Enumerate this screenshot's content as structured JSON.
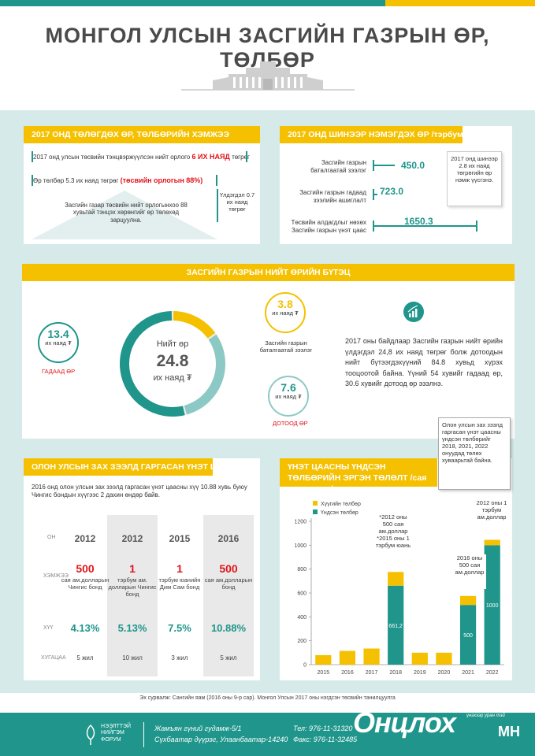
{
  "title": "МОНГОЛ УЛСЫН ЗАСГИЙН ГАЗРЫН ӨР, ТӨЛБӨР",
  "colors": {
    "teal": "#1f958b",
    "yellow": "#f5c000",
    "red": "#e0151b",
    "bg": "#d7eaea"
  },
  "payments_2017": {
    "header": "2017 ОНД ТӨЛӨГДӨХ ӨР, ТӨЛБӨРИЙН ХЭМЖЭЭ",
    "line1_pre": "2017 онд улсын төсвийн тэнцвэржүүлсэн нийт орлого",
    "line1_red": "6 ИХ НАЯД",
    "line1_post": "төгрөг",
    "line2_pre": "Өр төлбөр 5.3 их наяд төгрөг",
    "line2_red": "(төсвийн орлогын 88%)",
    "remainder": "Үлдэгдэл 0.7 их наяд төгрөг",
    "triangle_text": "Засгийн газар төсвийн нийт орлогынхоо 88 хувьтай тэнцэх хөрөнгийг өр төлөхөд зарцуулна."
  },
  "new_debt_2017": {
    "header": "2017 ОНД ШИНЭЭР НЭМЭГДЭХ ӨР /тэрбум ₮/",
    "items": [
      {
        "label": "Засгийн газрын баталгаатай зээлэг",
        "value": "450.0"
      },
      {
        "label": "Засгийн газрын гадаад зээлийн ашиглалт",
        "value": "723.0"
      },
      {
        "label": "Төсвийн алдагдлыг нөхөх Засгийн газрын үнэт цаас",
        "value": "1650.3"
      }
    ],
    "note": "2017 онд шинээр 2.8 их наяд төгрөгийн өр нэмж үүсгэнэ."
  },
  "structure": {
    "header": "ЗАСГИЙН ГАЗРЫН НИЙТ ӨРИЙН БҮТЭЦ",
    "total_label": "Нийт өр",
    "total_value": "24.8",
    "total_unit": "их наяд ₮",
    "external": {
      "value": "13.4",
      "unit": "их наяд ₮",
      "label": "ГАДААД ӨР",
      "share": 54
    },
    "guaranteed": {
      "value": "3.8",
      "unit": "их наяд ₮",
      "label": "Засгийн газрын баталгаатай зээлэг",
      "share": 15.3
    },
    "domestic": {
      "value": "7.6",
      "unit": "их наяд ₮",
      "label": "ДОТООД ӨР",
      "share": 30.6
    },
    "description": "2017 оны байдлаар Засгийн газрын нийт өрийн үлдэгдэл 24,8 их наяд төгрөг болж дотоодын нийт бүтээгдэхүүний 84.8 хувьд хүрэх тооцоотой байна. Үүний 54 хувийг гадаад өр, 30.6 хувийг дотоод өр эзэлнэ."
  },
  "bonds": {
    "header": "ОЛОН УЛСЫН ЗАХ ЗЭЭЛД ГАРГАСАН ҮНЭТ ЦААС",
    "intro": "2016 онд олон улсын зах зээлд гаргасан үнэт цаасны хүү 10.88 хувь буюу Чингис бондын хүүгээс 2 дахин өндөр байв.",
    "row_labels": {
      "year": "ОН",
      "amount": "ХЭМЖЭЭ",
      "rate": "ХҮҮ",
      "term": "ХУГАЦАА"
    },
    "columns": [
      {
        "year": "2012",
        "amount": "500",
        "amount_sub": "сая ам.долларын Чингис бонд",
        "rate": "4.13%",
        "term": "5 жил"
      },
      {
        "year": "2012",
        "amount": "1",
        "amount_sub": "тэрбум ам. долларын Чингис бонд",
        "rate": "5.13%",
        "term": "10 жил"
      },
      {
        "year": "2015",
        "amount": "1",
        "amount_sub": "тэрбум юанийн Дим Сам бонд",
        "rate": "7.5%",
        "term": "3 жил"
      },
      {
        "year": "2016",
        "amount": "500",
        "amount_sub": "сая ам.долларын бонд",
        "rate": "10.88%",
        "term": "5 жил"
      }
    ]
  },
  "chart_header": "ҮНЭТ ЦААСНЫ ҮНДСЭН ТӨЛБӨРИЙН ЭРГЭН ТӨЛӨЛТ  /сая ам.доллар/",
  "callout_top": "Олон улсын зах зээлд гаргасан үнэт цаасны үндсэн төлбөрийг 2018, 2021, 2022 онуудад төлөх хуваарьтай байна.",
  "annotations": {
    "a2018": "*2012 оны 500 сая ам.доллар *2015 оны 1 тэрбум юань",
    "a2021": "2016 оны 500 сая ам.доллар",
    "a2022": "2012 оны 1 тэрбум ам.доллар"
  },
  "chart_data": {
    "type": "bar",
    "stacked": true,
    "categories": [
      "2015",
      "2016",
      "2017",
      "2018",
      "2019",
      "2020",
      "2021",
      "2022"
    ],
    "series": [
      {
        "name": "Үндсэн төлбөр",
        "color": "#1f958b",
        "values": [
          0,
          0,
          0,
          661.2,
          0,
          0,
          500,
          1000
        ]
      },
      {
        "name": "Хүүгийн төлбөр",
        "color": "#f5c000",
        "values": [
          80,
          115,
          135,
          115,
          100,
          100,
          75,
          45
        ]
      }
    ],
    "data_labels": {
      "2018": "661,2",
      "2021": "500",
      "2022": "1000"
    },
    "yticks": [
      0,
      200,
      400,
      600,
      800,
      1000,
      1200
    ],
    "ylim": [
      0,
      1200
    ],
    "legend": "top-left"
  },
  "source": "Эх сурвалж: Сангийн яам (2016 оны 9-р сар). Монгол Улсын 2017 оны нэгдсэн төсвийн танилцуулга",
  "footer": {
    "org": "НЭЭЛТТЭЙ НИЙГЭМ ФОРУМ",
    "addr1": "Жамъян гүний гудамж-5/1",
    "addr2": "Сүхбаатар дүүрэг, Улаанбаатар-14240",
    "tel": "Тел: 976-11-31320",
    "fax": "Факс: 976-11-32485",
    "brand": "Онцлох",
    "brand_suffix": "МН",
    "brand_tag": "үнэхээр уран тэй"
  }
}
